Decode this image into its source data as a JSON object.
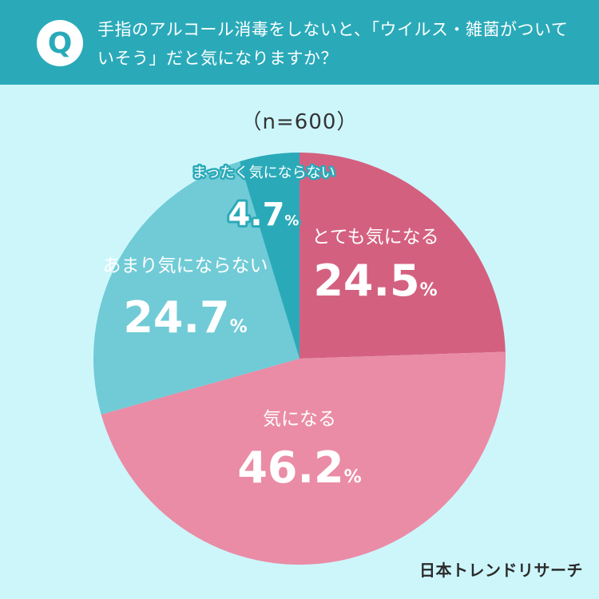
{
  "question": {
    "badge": "Q",
    "text": "手指のアルコール消毒をしないと、「ウイルス・雑菌がついていそう」だと気になりますか？"
  },
  "sample_size": "（n=600）",
  "brand": "日本トレンドリサーチ",
  "colors": {
    "header": "#2aaab9",
    "background": "#cdf6fb",
    "very_concerned": "#d4607f",
    "concerned": "#ea8ca6",
    "not_very_concerned": "#70cbd6",
    "not_concerned": "#2aaab9"
  },
  "chart_data": {
    "type": "pie",
    "title": "",
    "unit": "%",
    "categories": [
      "とても気になる",
      "気になる",
      "あまり気にならない",
      "まったく気にならない"
    ],
    "values": [
      24.5,
      46.2,
      24.7,
      4.7
    ],
    "value_labels": [
      "24.5",
      "46.2",
      "24.7",
      "4.7"
    ],
    "slice_colors": [
      "#d4607f",
      "#ea8ca6",
      "#70cbd6",
      "#2aaab9"
    ],
    "start": "12 o'clock",
    "direction": "clockwise"
  }
}
